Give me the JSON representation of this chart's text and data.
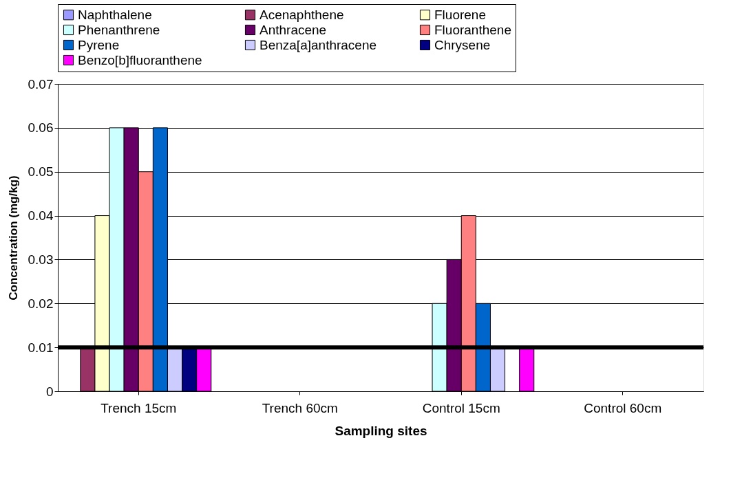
{
  "chart_data": {
    "type": "bar",
    "xlabel": "Sampling sites",
    "ylabel": "Concentration (mg/kg)",
    "categories": [
      "Trench 15cm",
      "Trench 60cm",
      "Control 15cm",
      "Control 60cm"
    ],
    "series": [
      {
        "name": "Naphthalene",
        "color": "#9999ff",
        "values": [
          null,
          null,
          null,
          null
        ]
      },
      {
        "name": "Acenaphthene",
        "color": "#993366",
        "values": [
          0.01,
          null,
          null,
          null
        ]
      },
      {
        "name": "Fluorene",
        "color": "#ffffcc",
        "values": [
          0.04,
          null,
          null,
          null
        ]
      },
      {
        "name": "Phenanthrene",
        "color": "#ccffff",
        "values": [
          0.06,
          null,
          0.02,
          null
        ]
      },
      {
        "name": "Anthracene",
        "color": "#660066",
        "values": [
          0.06,
          null,
          0.03,
          null
        ]
      },
      {
        "name": "Fluoranthene",
        "color": "#ff8080",
        "values": [
          0.05,
          null,
          0.04,
          null
        ]
      },
      {
        "name": "Pyrene",
        "color": "#0066cc",
        "values": [
          0.06,
          null,
          0.02,
          null
        ]
      },
      {
        "name": "Benza[a]anthracene",
        "color": "#ccccff",
        "values": [
          0.01,
          null,
          0.01,
          null
        ]
      },
      {
        "name": "Chrysene",
        "color": "#000080",
        "values": [
          0.01,
          null,
          null,
          null
        ]
      },
      {
        "name": "Benzo[b]fluoranthene",
        "color": "#ff00ff",
        "values": [
          0.01,
          null,
          0.01,
          null
        ]
      }
    ],
    "ylim": [
      0,
      0.07
    ],
    "yticks": [
      0,
      0.01,
      0.02,
      0.03,
      0.04,
      0.05,
      0.06,
      0.07
    ],
    "ref_lines": [
      {
        "axis": "y",
        "value": 0.01,
        "color": "#000000"
      }
    ],
    "grid": "y",
    "legend": "top"
  }
}
